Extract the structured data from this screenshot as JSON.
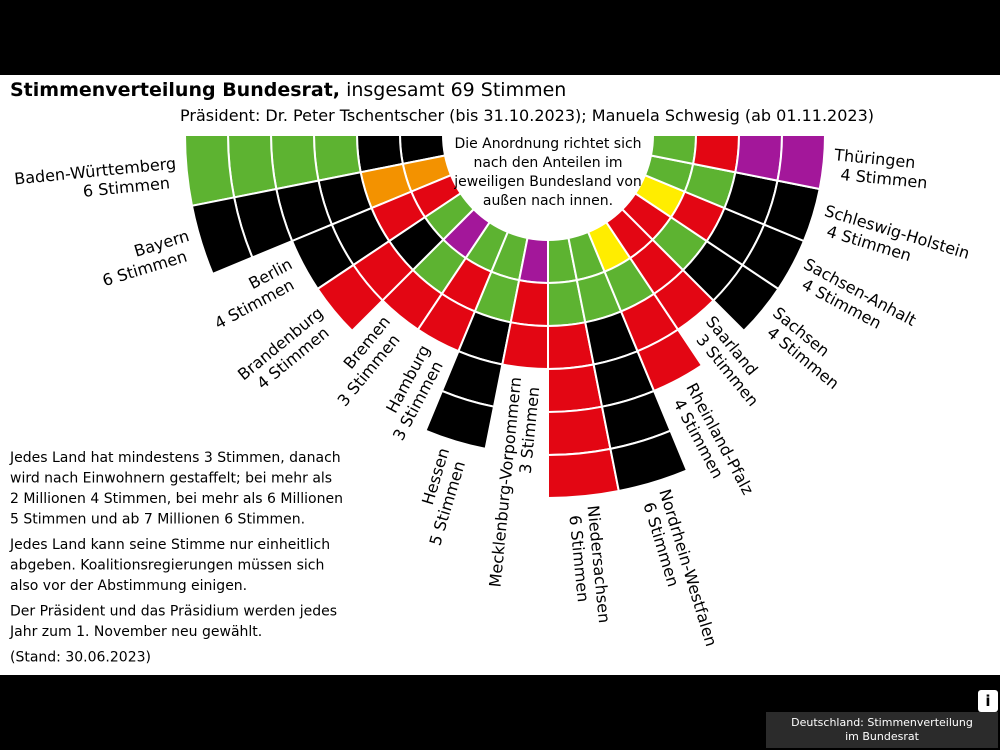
{
  "chart_data": {
    "type": "seat-fan",
    "title": "Stimmenverteilung Bundesrat,",
    "title_suffix": "insgesamt 69 Stimmen",
    "subtitle": "Präsident: Dr. Peter Tschentscher (bis 31.10.2023); Manuela Schwesig (ab 01.11.2023)",
    "center_note": [
      "Die Anordnung richtet sich",
      "nach den Anteilen im",
      "jeweiligen Bundesland von",
      "außen nach innen."
    ],
    "categories": [
      "Baden-Württemberg",
      "Bayern",
      "Berlin",
      "Brandenburg",
      "Bremen",
      "Hamburg",
      "Hessen",
      "Mecklenburg-Vorpommern",
      "Niedersachsen",
      "Nordrhein-Westfalen",
      "Rheinland-Pfalz",
      "Saarland",
      "Sachsen",
      "Sachsen-Anhalt",
      "Schleswig-Holstein",
      "Thüringen"
    ],
    "values": [
      6,
      6,
      4,
      4,
      3,
      3,
      5,
      3,
      6,
      6,
      4,
      3,
      4,
      4,
      4,
      4
    ],
    "value_labels": [
      "6 Stimmen",
      "6 Stimmen",
      "4 Stimmen",
      "4 Stimmen",
      "3 Stimmen",
      "3 Stimmen",
      "5 Stimmen",
      "3 Stimmen",
      "6 Stimmen",
      "6 Stimmen",
      "4 Stimmen",
      "3 Stimmen",
      "4 Stimmen",
      "4 Stimmen",
      "4 Stimmen",
      "4 Stimmen"
    ],
    "seat_colors": [
      [
        "#5db331",
        "#5db331",
        "#5db331",
        "#5db331",
        "#000000",
        "#000000"
      ],
      [
        "#000000",
        "#000000",
        "#000000",
        "#000000",
        "#f39200",
        "#f39200"
      ],
      [
        "#000000",
        "#000000",
        "#e30613",
        "#e30613"
      ],
      [
        "#e30613",
        "#e30613",
        "#000000",
        "#5db331"
      ],
      [
        "#e30613",
        "#5db331",
        "#a3179a"
      ],
      [
        "#e30613",
        "#e30613",
        "#5db331"
      ],
      [
        "#000000",
        "#000000",
        "#000000",
        "#5db331",
        "#5db331"
      ],
      [
        "#e30613",
        "#e30613",
        "#a3179a"
      ],
      [
        "#e30613",
        "#e30613",
        "#e30613",
        "#e30613",
        "#5db331",
        "#5db331"
      ],
      [
        "#000000",
        "#000000",
        "#000000",
        "#000000",
        "#5db331",
        "#5db331"
      ],
      [
        "#e30613",
        "#e30613",
        "#5db331",
        "#ffed00"
      ],
      [
        "#e30613",
        "#e30613",
        "#e30613"
      ],
      [
        "#000000",
        "#000000",
        "#5db331",
        "#e30613"
      ],
      [
        "#000000",
        "#000000",
        "#e30613",
        "#ffed00"
      ],
      [
        "#000000",
        "#000000",
        "#5db331",
        "#5db331"
      ],
      [
        "#a3179a",
        "#a3179a",
        "#e30613",
        "#5db331"
      ]
    ],
    "notes": [
      [
        "Jedes Land hat mindestens 3 Stimmen, danach",
        "wird nach Einwohnern gestaffelt; bei mehr als",
        "2 Millionen 4 Stimmen, bei mehr als 6 Millionen",
        "5 Stimmen und ab 7 Millionen 6 Stimmen."
      ],
      [
        "Jedes Land kann seine Stimme nur einheitlich",
        "abgeben. Koalitionsregierungen müssen sich",
        "also vor der Abstimmung einigen."
      ],
      [
        "Der Präsident und das Präsidium werden jedes",
        "Jahr zum 1. November neu gewählt."
      ],
      [
        "(Stand: 30.06.2023)"
      ]
    ]
  },
  "ui": {
    "info_button": "i",
    "caption": [
      "Deutschland: Stimmenverteilung",
      "im Bundesrat"
    ]
  }
}
